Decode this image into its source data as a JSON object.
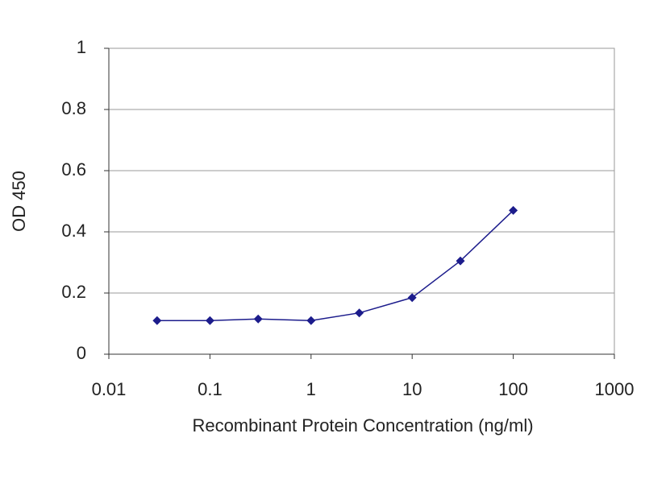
{
  "chart_data": {
    "type": "line",
    "xlabel": "Recombinant Protein Concentration (ng/ml)",
    "ylabel": "OD 450",
    "x": [
      0.03,
      0.1,
      0.3,
      1,
      3,
      10,
      30,
      100
    ],
    "series": [
      {
        "color": "#1c1c8c",
        "values": [
          0.11,
          0.11,
          0.115,
          0.11,
          0.135,
          0.185,
          0.305,
          0.47
        ]
      }
    ],
    "xlim": [
      0.01,
      1000
    ],
    "xticks": [
      0.01,
      0.1,
      1,
      10,
      100,
      1000
    ],
    "xscale": "log",
    "ylim": [
      0,
      1
    ],
    "yticks": [
      0,
      0.2,
      0.4,
      0.6,
      0.8,
      1
    ],
    "grid": true
  }
}
